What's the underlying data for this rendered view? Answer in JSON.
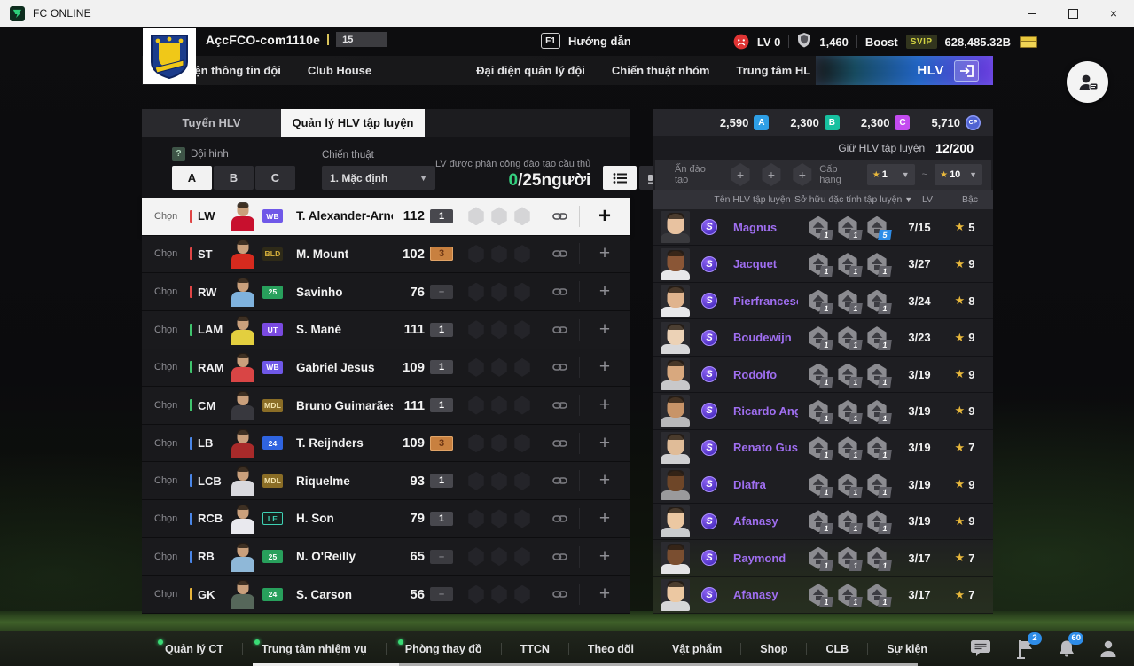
{
  "window": {
    "title": "FC ONLINE"
  },
  "topbar": {
    "account_name": "AçcFCO-com1110e",
    "account_level": "15",
    "help_key": "F1",
    "help_label": "Hướng dẫn",
    "face_level": "LV 0",
    "shield_value": "1,460",
    "boost_label": "Boost",
    "boost_badge": "SVIP",
    "money_value": "628,485.32B"
  },
  "nav": {
    "items": [
      "Đại diện thông tin đội",
      "Club House",
      "Đại diện quản lý đội",
      "Chiến thuật nhóm",
      "Trung tâm HL"
    ],
    "active_label": "HLV"
  },
  "tabs": {
    "recruit": "Tuyển HLV",
    "manage": "Quản lý HLV tập luyện"
  },
  "squad": {
    "help_icon": "?",
    "formation_label": "Đội hình",
    "formations": [
      "A",
      "B",
      "C"
    ],
    "active_formation": "A",
    "tactic_label": "Chiến thuật",
    "tactic_value": "1. Mặc định",
    "assign_label": "LV được phân công đào tạo cầu thủ",
    "assigned_count": "0",
    "assigned_total": "/25người",
    "select_label": "Chọn",
    "players": [
      {
        "pos": "LW",
        "pos_color": "#e04545",
        "season": "WB",
        "season_bg": "#6f58e8",
        "season_fg": "#ffffff",
        "name": "T. Alexander-Arnold",
        "rating": "112",
        "level": "1",
        "level_style": "gray",
        "kit": "#c8102e",
        "selected": true
      },
      {
        "pos": "ST",
        "pos_color": "#e04545",
        "season": "BLD",
        "season_bg": "#2e2a18",
        "season_fg": "#d9b23c",
        "name": "M. Mount",
        "rating": "102",
        "level": "3",
        "level_style": "bronze",
        "kit": "#d62a1e"
      },
      {
        "pos": "RW",
        "pos_color": "#e04545",
        "season": "25",
        "season_bg": "#28a05c",
        "season_fg": "#ffffff",
        "name": "Savinho",
        "rating": "76",
        "level": "–",
        "level_style": "dash",
        "kit": "#7fb2dd"
      },
      {
        "pos": "LAM",
        "pos_color": "#3fc46d",
        "season": "UT",
        "season_bg": "#7a4ae0",
        "season_fg": "#ffffff",
        "name": "S. Mané",
        "rating": "111",
        "level": "1",
        "level_style": "gray",
        "kit": "#e3cf3f"
      },
      {
        "pos": "RAM",
        "pos_color": "#3fc46d",
        "season": "WB",
        "season_bg": "#6f58e8",
        "season_fg": "#ffffff",
        "name": "Gabriel Jesus",
        "rating": "109",
        "level": "1",
        "level_style": "gray",
        "kit": "#d94545"
      },
      {
        "pos": "CM",
        "pos_color": "#3fc46d",
        "season": "MDL",
        "season_bg": "#8a6d26",
        "season_fg": "#f5e6b0",
        "name": "Bruno Guimarães",
        "rating": "111",
        "level": "1",
        "level_style": "gray",
        "kit": "#38383e"
      },
      {
        "pos": "LB",
        "pos_color": "#4a86e8",
        "season": "24",
        "season_bg": "#2f64e0",
        "season_fg": "#ffffff",
        "name": "T. Reijnders",
        "rating": "109",
        "level": "3",
        "level_style": "bronze",
        "kit": "#a82a2a"
      },
      {
        "pos": "LCB",
        "pos_color": "#4a86e8",
        "season": "MDL",
        "season_bg": "#8a6d26",
        "season_fg": "#f5e6b0",
        "name": "Riquelme",
        "rating": "93",
        "level": "1",
        "level_style": "gray",
        "kit": "#d9d9de"
      },
      {
        "pos": "RCB",
        "pos_color": "#4a86e8",
        "season": "LE",
        "season_bg": "#15201d",
        "season_fg": "#3fd0b4",
        "season_border": true,
        "name": "H. Son",
        "rating": "79",
        "level": "1",
        "level_style": "gray",
        "kit": "#e9e9ee"
      },
      {
        "pos": "RB",
        "pos_color": "#4a86e8",
        "season": "25",
        "season_bg": "#28a05c",
        "season_fg": "#ffffff",
        "name": "N. O'Reilly",
        "rating": "65",
        "level": "–",
        "level_style": "dash",
        "kit": "#8fb8d8"
      },
      {
        "pos": "GK",
        "pos_color": "#e8b43a",
        "season": "24",
        "season_bg": "#28a05c",
        "season_fg": "#ffffff",
        "name": "S. Carson",
        "rating": "56",
        "level": "–",
        "level_style": "dash",
        "kit": "#56675a"
      }
    ]
  },
  "coachpanel": {
    "currencies": [
      {
        "value": "2,590",
        "badge": "A",
        "color": "#2e9fe6"
      },
      {
        "value": "2,300",
        "badge": "B",
        "color": "#17c0a0"
      },
      {
        "value": "2,300",
        "badge": "C",
        "color": "#c44bf0"
      },
      {
        "value": "5,710",
        "badge": "CP",
        "color": "#4f63d2"
      }
    ],
    "hold_label": "Giữ HLV tập luyện",
    "hold_value": "12/200",
    "seal_filter_label": "Ấn đào tạo",
    "rank_filter_label": "Cấp hạng",
    "rank_from": "1",
    "rank_to": "10",
    "rank_separator": "~",
    "columns": {
      "name": "Tên HLV tập luyện",
      "traits": "Sở hữu đặc tính tập luyện",
      "lv": "LV",
      "rank": "Bậc"
    },
    "coaches": [
      {
        "name": "Magnus",
        "lv": "7/15",
        "rank": "5",
        "skills": [
          {
            "n": "1"
          },
          {
            "n": "1"
          },
          {
            "n": "5",
            "blue": true
          }
        ],
        "tone": "#e8c2a0",
        "shirt": "#3a3a3e"
      },
      {
        "name": "Jacquet",
        "lv": "3/27",
        "rank": "9",
        "skills": [
          {
            "n": "1"
          },
          {
            "n": "1"
          },
          {
            "n": "1"
          }
        ],
        "tone": "#8a5636",
        "shirt": "#e8e8ea"
      },
      {
        "name": "Pierfrancesco",
        "lv": "3/24",
        "rank": "8",
        "skills": [
          {
            "n": "1"
          },
          {
            "n": "1"
          },
          {
            "n": "1"
          }
        ],
        "tone": "#e0b48e",
        "shirt": "#e8e8ea"
      },
      {
        "name": "Boudewijn",
        "lv": "3/23",
        "rank": "9",
        "skills": [
          {
            "n": "1"
          },
          {
            "n": "1"
          },
          {
            "n": "1"
          }
        ],
        "tone": "#ecd2b6",
        "shirt": "#d8d8da"
      },
      {
        "name": "Rodolfo",
        "lv": "3/19",
        "rank": "9",
        "skills": [
          {
            "n": "1"
          },
          {
            "n": "1"
          },
          {
            "n": "1"
          }
        ],
        "tone": "#d8a87e",
        "shirt": "#c8c8ca"
      },
      {
        "name": "Ricardo Angel",
        "lv": "3/19",
        "rank": "9",
        "skills": [
          {
            "n": "1"
          },
          {
            "n": "1"
          },
          {
            "n": "1"
          }
        ],
        "tone": "#c89468",
        "shirt": "#b8b8ba"
      },
      {
        "name": "Renato Gustavo",
        "lv": "3/19",
        "rank": "7",
        "skills": [
          {
            "n": "1"
          },
          {
            "n": "1"
          },
          {
            "n": "1"
          }
        ],
        "tone": "#e0bc98",
        "shirt": "#d0d0d2"
      },
      {
        "name": "Diafra",
        "lv": "3/19",
        "rank": "9",
        "skills": [
          {
            "n": "1"
          },
          {
            "n": "1"
          },
          {
            "n": "1"
          }
        ],
        "tone": "#6e4628",
        "shirt": "#9a9a9c"
      },
      {
        "name": "Afanasy",
        "lv": "3/19",
        "rank": "9",
        "skills": [
          {
            "n": "1"
          },
          {
            "n": "1"
          },
          {
            "n": "1"
          }
        ],
        "tone": "#ecc8a2",
        "shirt": "#caccce"
      },
      {
        "name": "Raymond",
        "lv": "3/17",
        "rank": "7",
        "skills": [
          {
            "n": "1"
          },
          {
            "n": "1"
          },
          {
            "n": "1"
          }
        ],
        "tone": "#7a4e30",
        "shirt": "#e4e4e6"
      },
      {
        "name": "Afanasy",
        "lv": "3/17",
        "rank": "7",
        "skills": [
          {
            "n": "1"
          },
          {
            "n": "1"
          },
          {
            "n": "1"
          }
        ],
        "tone": "#ecc8a2",
        "shirt": "#d6d6d8"
      }
    ]
  },
  "bottombar": {
    "items": [
      {
        "label": "Quản lý CT",
        "dot": true
      },
      {
        "label": "Trung tâm nhiệm vụ",
        "dot": true
      },
      {
        "label": "Phòng thay đồ",
        "dot": true
      },
      {
        "label": "TTCN",
        "dot": false
      },
      {
        "label": "Theo dõi",
        "dot": false
      },
      {
        "label": "Vật phẩm",
        "dot": false
      },
      {
        "label": "Shop",
        "dot": false
      },
      {
        "label": "CLB",
        "dot": false
      },
      {
        "label": "Sự kiện",
        "dot": false
      }
    ],
    "flag_badge": "2",
    "bell_badge": "60"
  }
}
